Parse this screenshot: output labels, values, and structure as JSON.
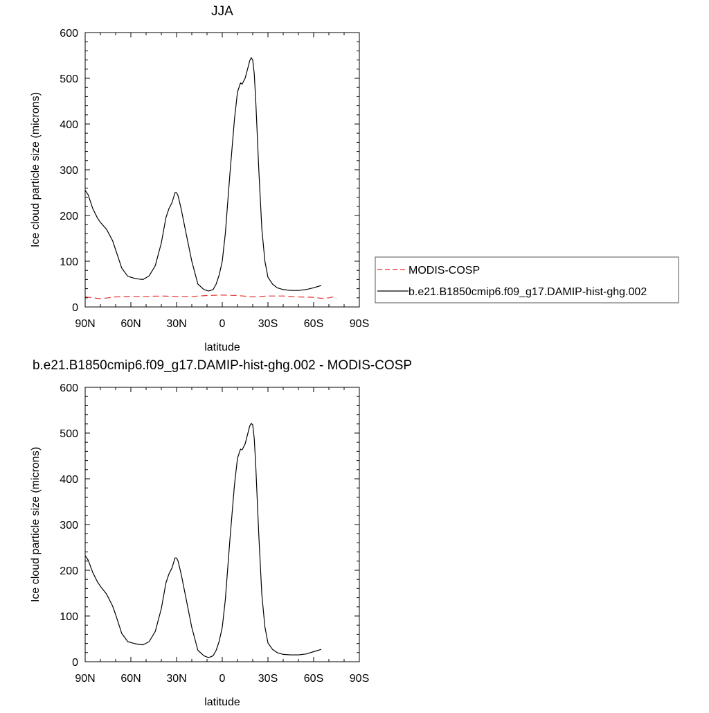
{
  "chart_data": [
    {
      "type": "line",
      "title": "JJA",
      "xlabel": "latitude",
      "ylabel": "Ice cloud particle size (microns)",
      "xlim": [
        90,
        -90
      ],
      "ylim": [
        0,
        600
      ],
      "xticks": [
        {
          "value": 90,
          "label": "90N"
        },
        {
          "value": 60,
          "label": "60N"
        },
        {
          "value": 30,
          "label": "30N"
        },
        {
          "value": 0,
          "label": "0"
        },
        {
          "value": -30,
          "label": "30S"
        },
        {
          "value": -60,
          "label": "60S"
        },
        {
          "value": -90,
          "label": "90S"
        }
      ],
      "yticks": [
        0,
        100,
        200,
        300,
        400,
        500,
        600
      ],
      "legend_position": "right",
      "series": [
        {
          "name": "MODIS-COSP",
          "color": "#e8302f",
          "dash": "dashed",
          "x": [
            90,
            85,
            80,
            75,
            70,
            60,
            50,
            40,
            30,
            20,
            10,
            0,
            -10,
            -20,
            -30,
            -40,
            -50,
            -60,
            -65,
            -70,
            -73,
            -75
          ],
          "y": [
            22,
            20,
            18,
            20,
            22,
            23,
            23,
            24,
            23,
            23,
            25,
            26,
            25,
            22,
            24,
            24,
            22,
            21,
            19,
            20,
            22,
            18
          ]
        },
        {
          "name": "b.e21.B1850cmip6.f09_g17.DAMIP-hist-ghg.002",
          "color": "#000000",
          "dash": "solid",
          "x": [
            90,
            88,
            85,
            82,
            80,
            76,
            72,
            70,
            66,
            62,
            58,
            55,
            52,
            48,
            44,
            40,
            37,
            35,
            33,
            31,
            30,
            29,
            27,
            24,
            20,
            16,
            12,
            9,
            6,
            4,
            2,
            0,
            -2,
            -5,
            -8,
            -10,
            -12,
            -13,
            -15,
            -17,
            -18,
            -19,
            -20,
            -21,
            -22,
            -24,
            -26,
            -28,
            -30,
            -33,
            -36,
            -40,
            -45,
            -50,
            -55,
            -60,
            -65
          ],
          "y": [
            255,
            245,
            215,
            195,
            185,
            170,
            145,
            125,
            85,
            67,
            63,
            61,
            60,
            68,
            90,
            140,
            195,
            215,
            228,
            250,
            250,
            243,
            215,
            165,
            100,
            50,
            38,
            35,
            38,
            50,
            70,
            100,
            160,
            290,
            410,
            470,
            490,
            487,
            500,
            525,
            538,
            545,
            540,
            510,
            450,
            300,
            170,
            100,
            65,
            50,
            42,
            38,
            36,
            36,
            38,
            42,
            47
          ]
        }
      ]
    },
    {
      "type": "line",
      "title": "b.e21.B1850cmip6.f09_g17.DAMIP-hist-ghg.002 - MODIS-COSP",
      "xlabel": "latitude",
      "ylabel": "Ice cloud particle size (microns)",
      "xlim": [
        90,
        -90
      ],
      "ylim": [
        0,
        600
      ],
      "xticks": [
        {
          "value": 90,
          "label": "90N"
        },
        {
          "value": 60,
          "label": "60N"
        },
        {
          "value": 30,
          "label": "30N"
        },
        {
          "value": 0,
          "label": "0"
        },
        {
          "value": -30,
          "label": "30S"
        },
        {
          "value": -60,
          "label": "60S"
        },
        {
          "value": -90,
          "label": "90S"
        }
      ],
      "yticks": [
        0,
        100,
        200,
        300,
        400,
        500,
        600
      ],
      "series": [
        {
          "color": "#000000",
          "dash": "solid",
          "x": [
            90,
            88,
            85,
            82,
            80,
            76,
            72,
            70,
            66,
            62,
            58,
            55,
            52,
            48,
            44,
            40,
            37,
            35,
            33,
            31,
            30,
            29,
            27,
            24,
            20,
            16,
            12,
            9,
            6,
            4,
            2,
            0,
            -2,
            -5,
            -8,
            -10,
            -12,
            -13,
            -15,
            -17,
            -18,
            -19,
            -20,
            -21,
            -22,
            -24,
            -26,
            -28,
            -30,
            -33,
            -36,
            -40,
            -45,
            -50,
            -55,
            -60,
            -65
          ],
          "y": [
            232,
            222,
            195,
            175,
            165,
            148,
            122,
            103,
            62,
            44,
            40,
            38,
            37,
            44,
            66,
            116,
            172,
            192,
            205,
            227,
            227,
            220,
            192,
            142,
            75,
            25,
            13,
            9,
            13,
            25,
            45,
            75,
            135,
            266,
            386,
            445,
            465,
            463,
            476,
            502,
            515,
            521,
            518,
            488,
            428,
            276,
            146,
            76,
            41,
            27,
            20,
            16,
            15,
            15,
            17,
            22,
            27
          ]
        }
      ]
    }
  ]
}
